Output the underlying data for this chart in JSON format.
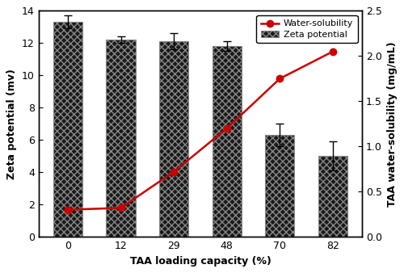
{
  "categories": [
    0,
    12,
    29,
    48,
    70,
    82
  ],
  "zeta_values": [
    13.3,
    12.2,
    12.1,
    11.8,
    6.3,
    5.0
  ],
  "zeta_errors": [
    0.4,
    0.2,
    0.5,
    0.3,
    0.7,
    0.9
  ],
  "water_sol_values": [
    0.3,
    0.32,
    0.72,
    1.2,
    1.75,
    2.05
  ],
  "xlabel": "TAA loading capacity (%)",
  "ylabel_left": "Zeta potential (mv)",
  "ylabel_right": "TAA water-solubility (mg/mL)",
  "ylim_left": [
    0,
    14
  ],
  "ylim_right": [
    0,
    2.5
  ],
  "yticks_left": [
    0,
    2,
    4,
    6,
    8,
    10,
    12,
    14
  ],
  "yticks_right": [
    0.0,
    0.5,
    1.0,
    1.5,
    2.0,
    2.5
  ],
  "bar_facecolor": "#1a1a1a",
  "bar_hatch": "xxxx",
  "bar_edgecolor": "#888888",
  "line_color": "#cc0000",
  "marker_color": "#cc0000",
  "legend_ws_label": "Water-solubility",
  "legend_zp_label": "Zeta potential",
  "background_color": "#ffffff"
}
